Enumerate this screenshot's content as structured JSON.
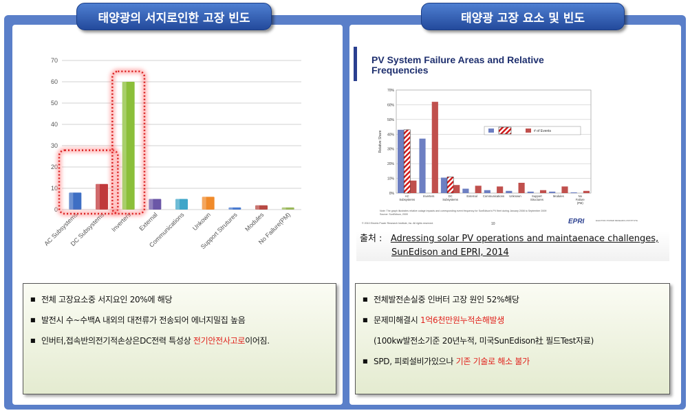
{
  "left": {
    "title": "태양광의 서지로인한 고장 빈도",
    "bullets": [
      {
        "parts": [
          {
            "text": "전체 고장요소중 서지요인 ",
            "red": false
          },
          {
            "text": "20%",
            "red": false
          },
          {
            "text": "에 해당",
            "red": false
          }
        ]
      },
      {
        "parts": [
          {
            "text": "발전시 수~수백A 내외의 대전류가 전송되어 에너지밀집 높음",
            "red": false
          }
        ]
      },
      {
        "parts": [
          {
            "text": "인버터,접속반의전기적손상은DC전력 특성상 ",
            "red": false
          },
          {
            "text": "전기안전사고로",
            "red": true
          },
          {
            "text": "이어짐.",
            "red": false
          }
        ]
      }
    ]
  },
  "right": {
    "title": "태양광 고장 요소 및 빈도",
    "slide_title": "PV System Failure Areas and Relative Frequencies",
    "source_label": "출처 :",
    "source_line1": "Adressing solar PV operations and maintaenace challenges,",
    "source_line2": "SunEdison and EPRI, 2014",
    "bullets": [
      {
        "parts": [
          {
            "text": "전체발전손실중 인버터 고장 원인 52%해당",
            "red": false
          }
        ]
      },
      {
        "parts": [
          {
            "text": "문제미해결시 ",
            "red": false
          },
          {
            "text": "1억6천만원누적손해발생",
            "red": true
          }
        ]
      },
      {
        "sub": true,
        "parts": [
          {
            "text": "(100kw발전소기준 20년누적, 미국SunEdison社 필드Test자료)",
            "red": false
          }
        ]
      },
      {
        "parts": [
          {
            "text": "SPD, 피뢰설비가있으나 ",
            "red": false
          },
          {
            "text": "기존 기술로 해소 불가",
            "red": true
          }
        ]
      }
    ]
  },
  "chart_data": [
    {
      "type": "bar",
      "categories": [
        "AC Subsystems",
        "DC Subsystems",
        "Inverters",
        "External",
        "Communications",
        "Unkown",
        "Support Strutures",
        "Modules",
        "No Failure(PM)"
      ],
      "values": [
        8,
        12,
        60,
        5,
        5,
        6,
        1,
        2,
        1
      ],
      "colors": [
        "#3e6fc4",
        "#c0393b",
        "#8bbf3a",
        "#6b57a7",
        "#3fa6c9",
        "#f08a2a",
        "#4a7bd0",
        "#b84a44",
        "#9ab85a"
      ],
      "ylim": [
        0,
        70
      ],
      "yticks": [
        0,
        10,
        20,
        30,
        40,
        50,
        60,
        70
      ],
      "grid": true,
      "highlight": [
        "AC Subsystems",
        "DC Subsystems",
        "Inverters"
      ]
    },
    {
      "type": "bar",
      "categories": [
        "AC Subsystems",
        "Inverters",
        "DC Subsystems",
        "External",
        "Communications",
        "Unknown",
        "Support Structures",
        "Modules",
        "No Failure (PM)"
      ],
      "series": [
        {
          "name": "",
          "values": [
            43,
            37,
            10.5,
            3,
            2,
            1.5,
            1,
            1,
            0.5
          ],
          "color": "#6d7fc2"
        },
        {
          "name": "",
          "values": [
            43,
            0,
            11,
            0,
            0,
            0,
            0,
            0,
            0
          ],
          "color": "hatch"
        },
        {
          "name": "# of Events",
          "values": [
            8.5,
            62,
            5.5,
            5,
            4.5,
            7,
            2,
            4.5,
            1.5
          ],
          "color": "#c0504d"
        }
      ],
      "ylim": [
        0,
        70
      ],
      "yticks": [
        "0%",
        "10%",
        "20%",
        "30%",
        "40%",
        "50%",
        "60%",
        "70%"
      ],
      "ylabel": "Relative Share",
      "note": "Note: The graph illustrates relative outage impacts and corresponding event frequency for SunEdison's PV fleet during January 2008 to September 2009",
      "source": "Source: SunEdison, 2009",
      "copyright": "© 2010 Electric Power Research Institute, Inc. All rights reserved.",
      "page": "10",
      "logo": "EPRI",
      "logo_sub": "ELECTRIC POWER RESEARCH INSTITUTE"
    }
  ]
}
